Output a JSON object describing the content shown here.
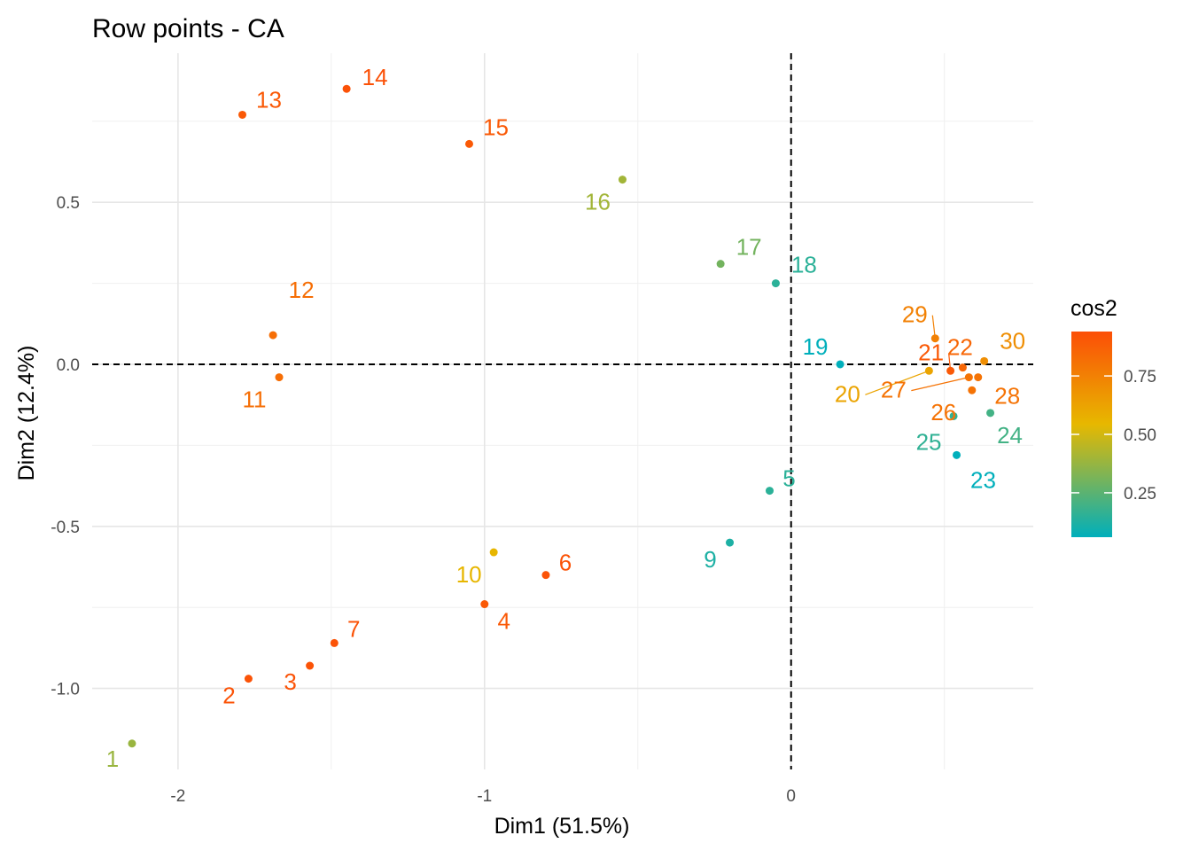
{
  "chart_data": {
    "type": "scatter",
    "title": "Row points - CA",
    "xlabel": "Dim1 (51.5%)",
    "ylabel": "Dim2 (12.4%)",
    "xlim": [
      -2.28,
      0.79
    ],
    "ylim": [
      -1.25,
      0.96
    ],
    "x_ticks": [
      -2,
      -1,
      0
    ],
    "x_tick_labels": [
      "-2",
      "-1",
      "0"
    ],
    "y_ticks": [
      0.5,
      0.0,
      -0.5,
      -1.0
    ],
    "y_tick_labels": [
      "0.5",
      "0.0",
      "-0.5",
      "-1.0"
    ],
    "grid": true,
    "reference_lines": {
      "x": 0,
      "y": 0,
      "style": "dashed"
    },
    "color_by": "cos2",
    "legend": {
      "title": "cos2",
      "position": "right",
      "range": [
        0.06,
        0.94
      ],
      "ticks": [
        0.75,
        0.5,
        0.25
      ],
      "tick_labels": [
        "0.75",
        "0.50",
        "0.25"
      ],
      "gradient_colors": [
        "#00AFBB",
        "#E7B800",
        "#FC4E07"
      ]
    },
    "points": [
      {
        "label": "1",
        "x": -2.15,
        "y": -1.17,
        "cos2": 0.38
      },
      {
        "label": "2",
        "x": -1.77,
        "y": -0.97,
        "cos2": 0.92
      },
      {
        "label": "3",
        "x": -1.57,
        "y": -0.93,
        "cos2": 0.92
      },
      {
        "label": "4",
        "x": -1.0,
        "y": -0.74,
        "cos2": 0.9
      },
      {
        "label": "5",
        "x": -0.07,
        "y": -0.39,
        "cos2": 0.15
      },
      {
        "label": "6",
        "x": -0.8,
        "y": -0.65,
        "cos2": 0.92
      },
      {
        "label": "7",
        "x": -1.49,
        "y": -0.86,
        "cos2": 0.92
      },
      {
        "label": "9",
        "x": -0.2,
        "y": -0.55,
        "cos2": 0.12
      },
      {
        "label": "10",
        "x": -0.97,
        "y": -0.58,
        "cos2": 0.55
      },
      {
        "label": "11",
        "x": -1.67,
        "y": -0.04,
        "cos2": 0.82
      },
      {
        "label": "12",
        "x": -1.69,
        "y": 0.09,
        "cos2": 0.82
      },
      {
        "label": "13",
        "x": -1.79,
        "y": 0.77,
        "cos2": 0.9
      },
      {
        "label": "14",
        "x": -1.45,
        "y": 0.85,
        "cos2": 0.93
      },
      {
        "label": "15",
        "x": -1.05,
        "y": 0.68,
        "cos2": 0.9
      },
      {
        "label": "16",
        "x": -0.55,
        "y": 0.57,
        "cos2": 0.4
      },
      {
        "label": "17",
        "x": -0.23,
        "y": 0.31,
        "cos2": 0.3
      },
      {
        "label": "18",
        "x": -0.05,
        "y": 0.25,
        "cos2": 0.15
      },
      {
        "label": "19",
        "x": 0.16,
        "y": 0.0,
        "cos2": 0.06
      },
      {
        "label": "20",
        "x": 0.45,
        "y": -0.02,
        "cos2": 0.62
      },
      {
        "label": "21",
        "x": 0.52,
        "y": -0.02,
        "cos2": 0.9
      },
      {
        "label": "22",
        "x": 0.56,
        "y": -0.01,
        "cos2": 0.85
      },
      {
        "label": "23",
        "x": 0.54,
        "y": -0.28,
        "cos2": 0.06
      },
      {
        "label": "24",
        "x": 0.65,
        "y": -0.15,
        "cos2": 0.2
      },
      {
        "label": "25",
        "x": 0.53,
        "y": -0.16,
        "cos2": 0.16
      },
      {
        "label": "26",
        "x": 0.59,
        "y": -0.08,
        "cos2": 0.8
      },
      {
        "label": "27",
        "x": 0.58,
        "y": -0.04,
        "cos2": 0.8
      },
      {
        "label": "28",
        "x": 0.61,
        "y": -0.04,
        "cos2": 0.8
      },
      {
        "label": "29",
        "x": 0.47,
        "y": 0.08,
        "cos2": 0.75
      },
      {
        "label": "30",
        "x": 0.63,
        "y": 0.01,
        "cos2": 0.7
      }
    ]
  }
}
